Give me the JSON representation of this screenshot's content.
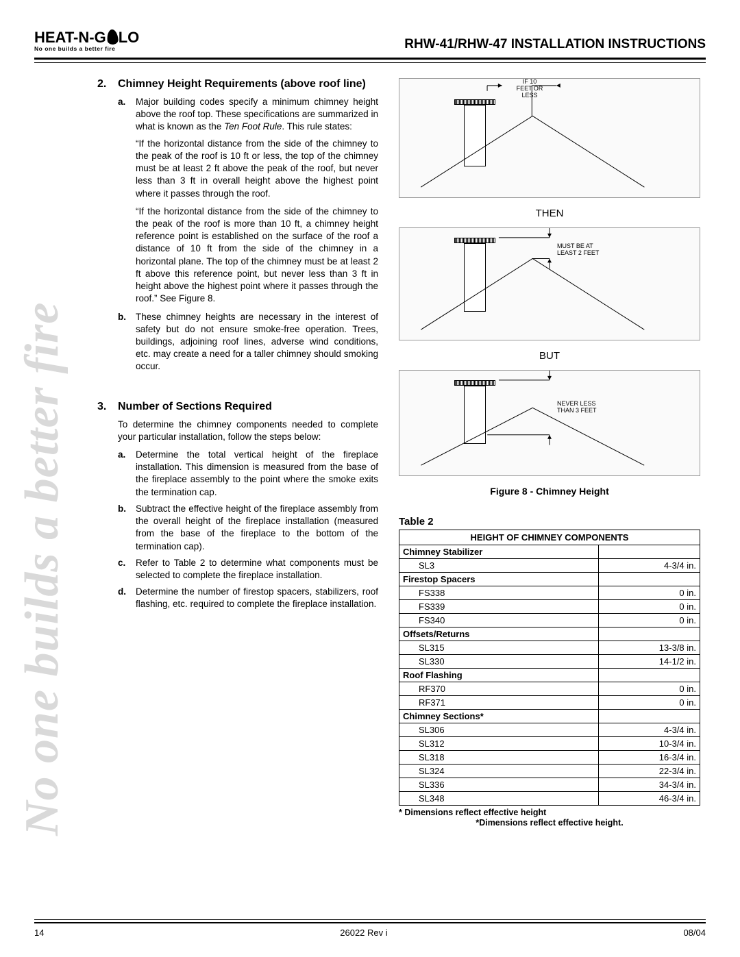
{
  "logo": {
    "brand": "HEAT-N-GLO",
    "tagline": "No one builds a better fire"
  },
  "doc_title": "RHW-41/RHW-47 INSTALLATION INSTRUCTIONS",
  "watermark": "No one builds a better fire",
  "section2": {
    "num": "2.",
    "heading": "Chimney Height Requirements (above roof line)",
    "a_label": "a.",
    "a_text": "Major building codes specify a minimum chimney height above the roof top. These specifications are summarized in what is known as the ",
    "a_ital": "Ten Foot Rule",
    "a_suffix": ". This rule states:",
    "quote1": "“If the horizontal distance from the side of the chimney to the peak of the roof is 10 ft or less, the top of the chimney must be at least 2 ft above the peak of the roof, but never less than 3 ft in overall height above the highest point where it passes through the roof.",
    "quote2": "“If the horizontal distance from the side of the chimney to the peak of the roof is more than 10 ft, a chimney height reference point is established on the surface of the roof a distance of 10 ft from the side of the chimney in a horizontal plane. The top of the chimney must be at least 2 ft above this reference point, but never less than 3 ft in height above the highest point where it passes through the roof.” See Figure 8.",
    "b_label": "b.",
    "b_text": "These chimney heights are necessary in the interest of safety but do not ensure smoke-free operation. Trees, buildings, adjoining roof lines, adverse wind conditions, etc. may create a need for a taller chimney should smoking occur."
  },
  "section3": {
    "num": "3.",
    "heading": "Number of Sections Required",
    "intro": "To determine the chimney components needed to complete your particular installation, follow the steps below:",
    "items": [
      {
        "label": "a.",
        "text": "Determine the total vertical height of the fireplace installation. This dimension is measured from the base of the fireplace assembly to the point where the smoke exits the termination cap."
      },
      {
        "label": "b.",
        "text": "Subtract the effective height of the fireplace assembly from the overall height of the fireplace installation (measured from the base of the fireplace to the bottom of the termination cap)."
      },
      {
        "label": "c.",
        "text": "Refer to Table 2 to determine what components must be selected to complete the fireplace installation."
      },
      {
        "label": "d.",
        "text": "Determine the number of firestop spacers, stabilizers, roof flashing, etc. required to complete the fireplace installation."
      }
    ]
  },
  "figure": {
    "label_if": "IF 10\nFEET OR\nLESS",
    "word_then": "THEN",
    "label_must": "MUST BE AT\nLEAST 2 FEET",
    "word_but": "BUT",
    "label_never": "NEVER LESS\nTHAN 3 FEET",
    "caption": "Figure 8 - Chimney Height"
  },
  "table": {
    "title": "Table 2",
    "header": "HEIGHT OF CHIMNEY COMPONENTS",
    "categories": [
      {
        "name": "Chimney Stabilizer",
        "rows": [
          {
            "code": "SL3",
            "val": "4-3/4 in."
          }
        ]
      },
      {
        "name": "Firestop Spacers",
        "rows": [
          {
            "code": "FS338",
            "val": "0 in."
          },
          {
            "code": "FS339",
            "val": "0 in."
          },
          {
            "code": "FS340",
            "val": "0 in."
          }
        ]
      },
      {
        "name": "Offsets/Returns",
        "rows": [
          {
            "code": "SL315",
            "val": "13-3/8 in."
          },
          {
            "code": "SL330",
            "val": "14-1/2 in."
          }
        ]
      },
      {
        "name": "Roof Flashing",
        "rows": [
          {
            "code": "RF370",
            "val": "0 in."
          },
          {
            "code": "RF371",
            "val": "0 in."
          }
        ]
      },
      {
        "name": "Chimney Sections*",
        "rows": [
          {
            "code": "SL306",
            "val": "4-3/4 in."
          },
          {
            "code": "SL312",
            "val": "10-3/4 in."
          },
          {
            "code": "SL318",
            "val": "16-3/4 in."
          },
          {
            "code": "SL324",
            "val": "22-3/4 in."
          },
          {
            "code": "SL336",
            "val": "34-3/4 in."
          },
          {
            "code": "SL348",
            "val": "46-3/4 in."
          }
        ]
      }
    ],
    "footnote": "* Dimensions reflect effective height",
    "footnote2": "*Dimensions reflect effective height."
  },
  "footer": {
    "page": "14",
    "docid": "26022 Rev i",
    "date": "08/04"
  },
  "colors": {
    "text": "#000000",
    "watermark": "#d9d9d9",
    "border": "#000000"
  }
}
